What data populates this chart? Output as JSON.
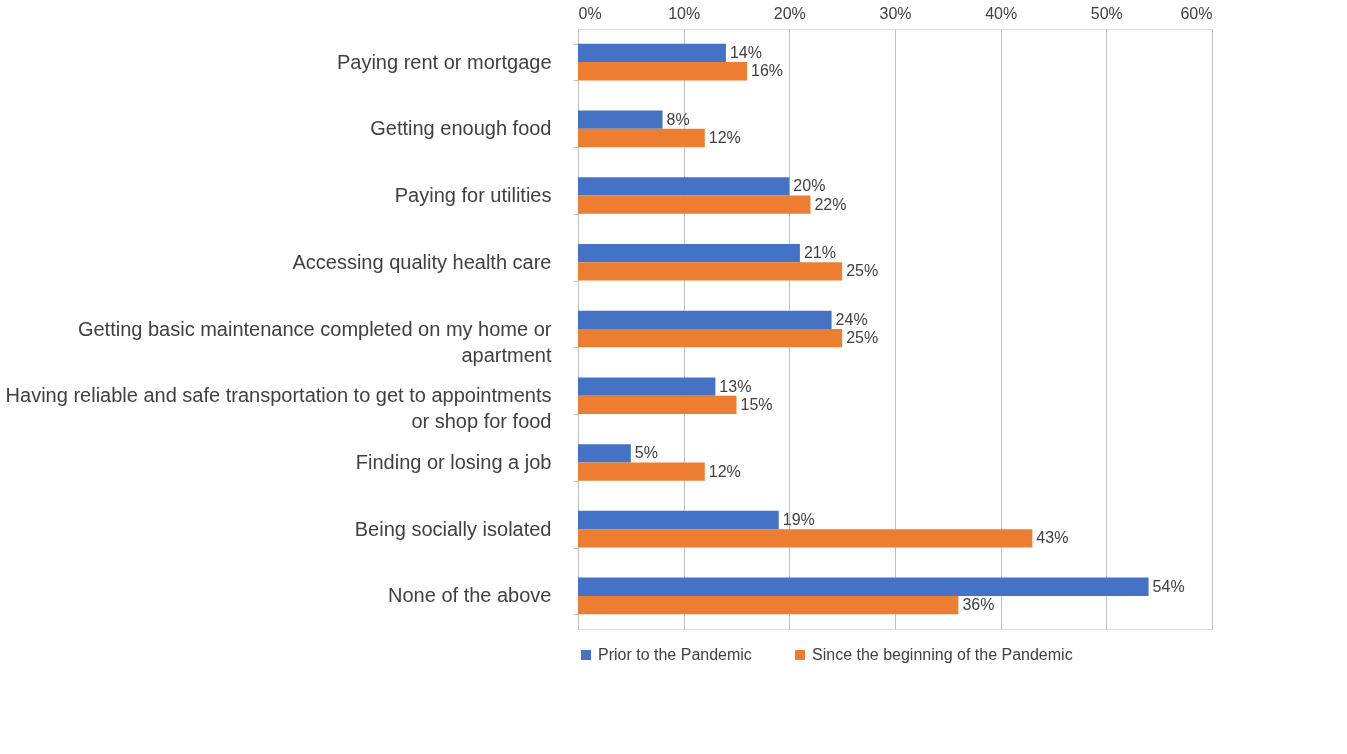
{
  "chart_data": {
    "type": "bar",
    "orientation": "horizontal",
    "categories": [
      "Paying rent or mortgage",
      "Getting enough food",
      "Paying for utilities",
      "Accessing quality health care",
      "Getting basic maintenance completed on my home or\napartment",
      "Having reliable and safe transportation to get to appointments\nor shop for food",
      "Finding or losing a job",
      "Being socially isolated",
      "None of the above"
    ],
    "series": [
      {
        "name": "Prior to the Pandemic",
        "color": "#4472c4",
        "values": [
          14,
          8,
          20,
          21,
          24,
          13,
          5,
          19,
          54
        ],
        "value_labels": [
          "14%",
          "8%",
          "20%",
          "21%",
          "24%",
          "13%",
          "5%",
          "19%",
          "54%"
        ]
      },
      {
        "name": "Since the beginning of the Pandemic",
        "color": "#ed7d31",
        "values": [
          16,
          12,
          22,
          25,
          25,
          15,
          12,
          43,
          36
        ],
        "value_labels": [
          "16%",
          "12%",
          "22%",
          "25%",
          "25%",
          "15%",
          "12%",
          "43%",
          "36%"
        ]
      }
    ],
    "xlim": [
      0,
      60
    ],
    "xticks": [
      {
        "value": 0,
        "label": "0%"
      },
      {
        "value": 10,
        "label": "10%"
      },
      {
        "value": 20,
        "label": "20%"
      },
      {
        "value": 30,
        "label": "30%"
      },
      {
        "value": 40,
        "label": "40%"
      },
      {
        "value": 50,
        "label": "50%"
      },
      {
        "value": 60,
        "label": "60%"
      }
    ],
    "grid": "x",
    "legend": "bottom"
  }
}
